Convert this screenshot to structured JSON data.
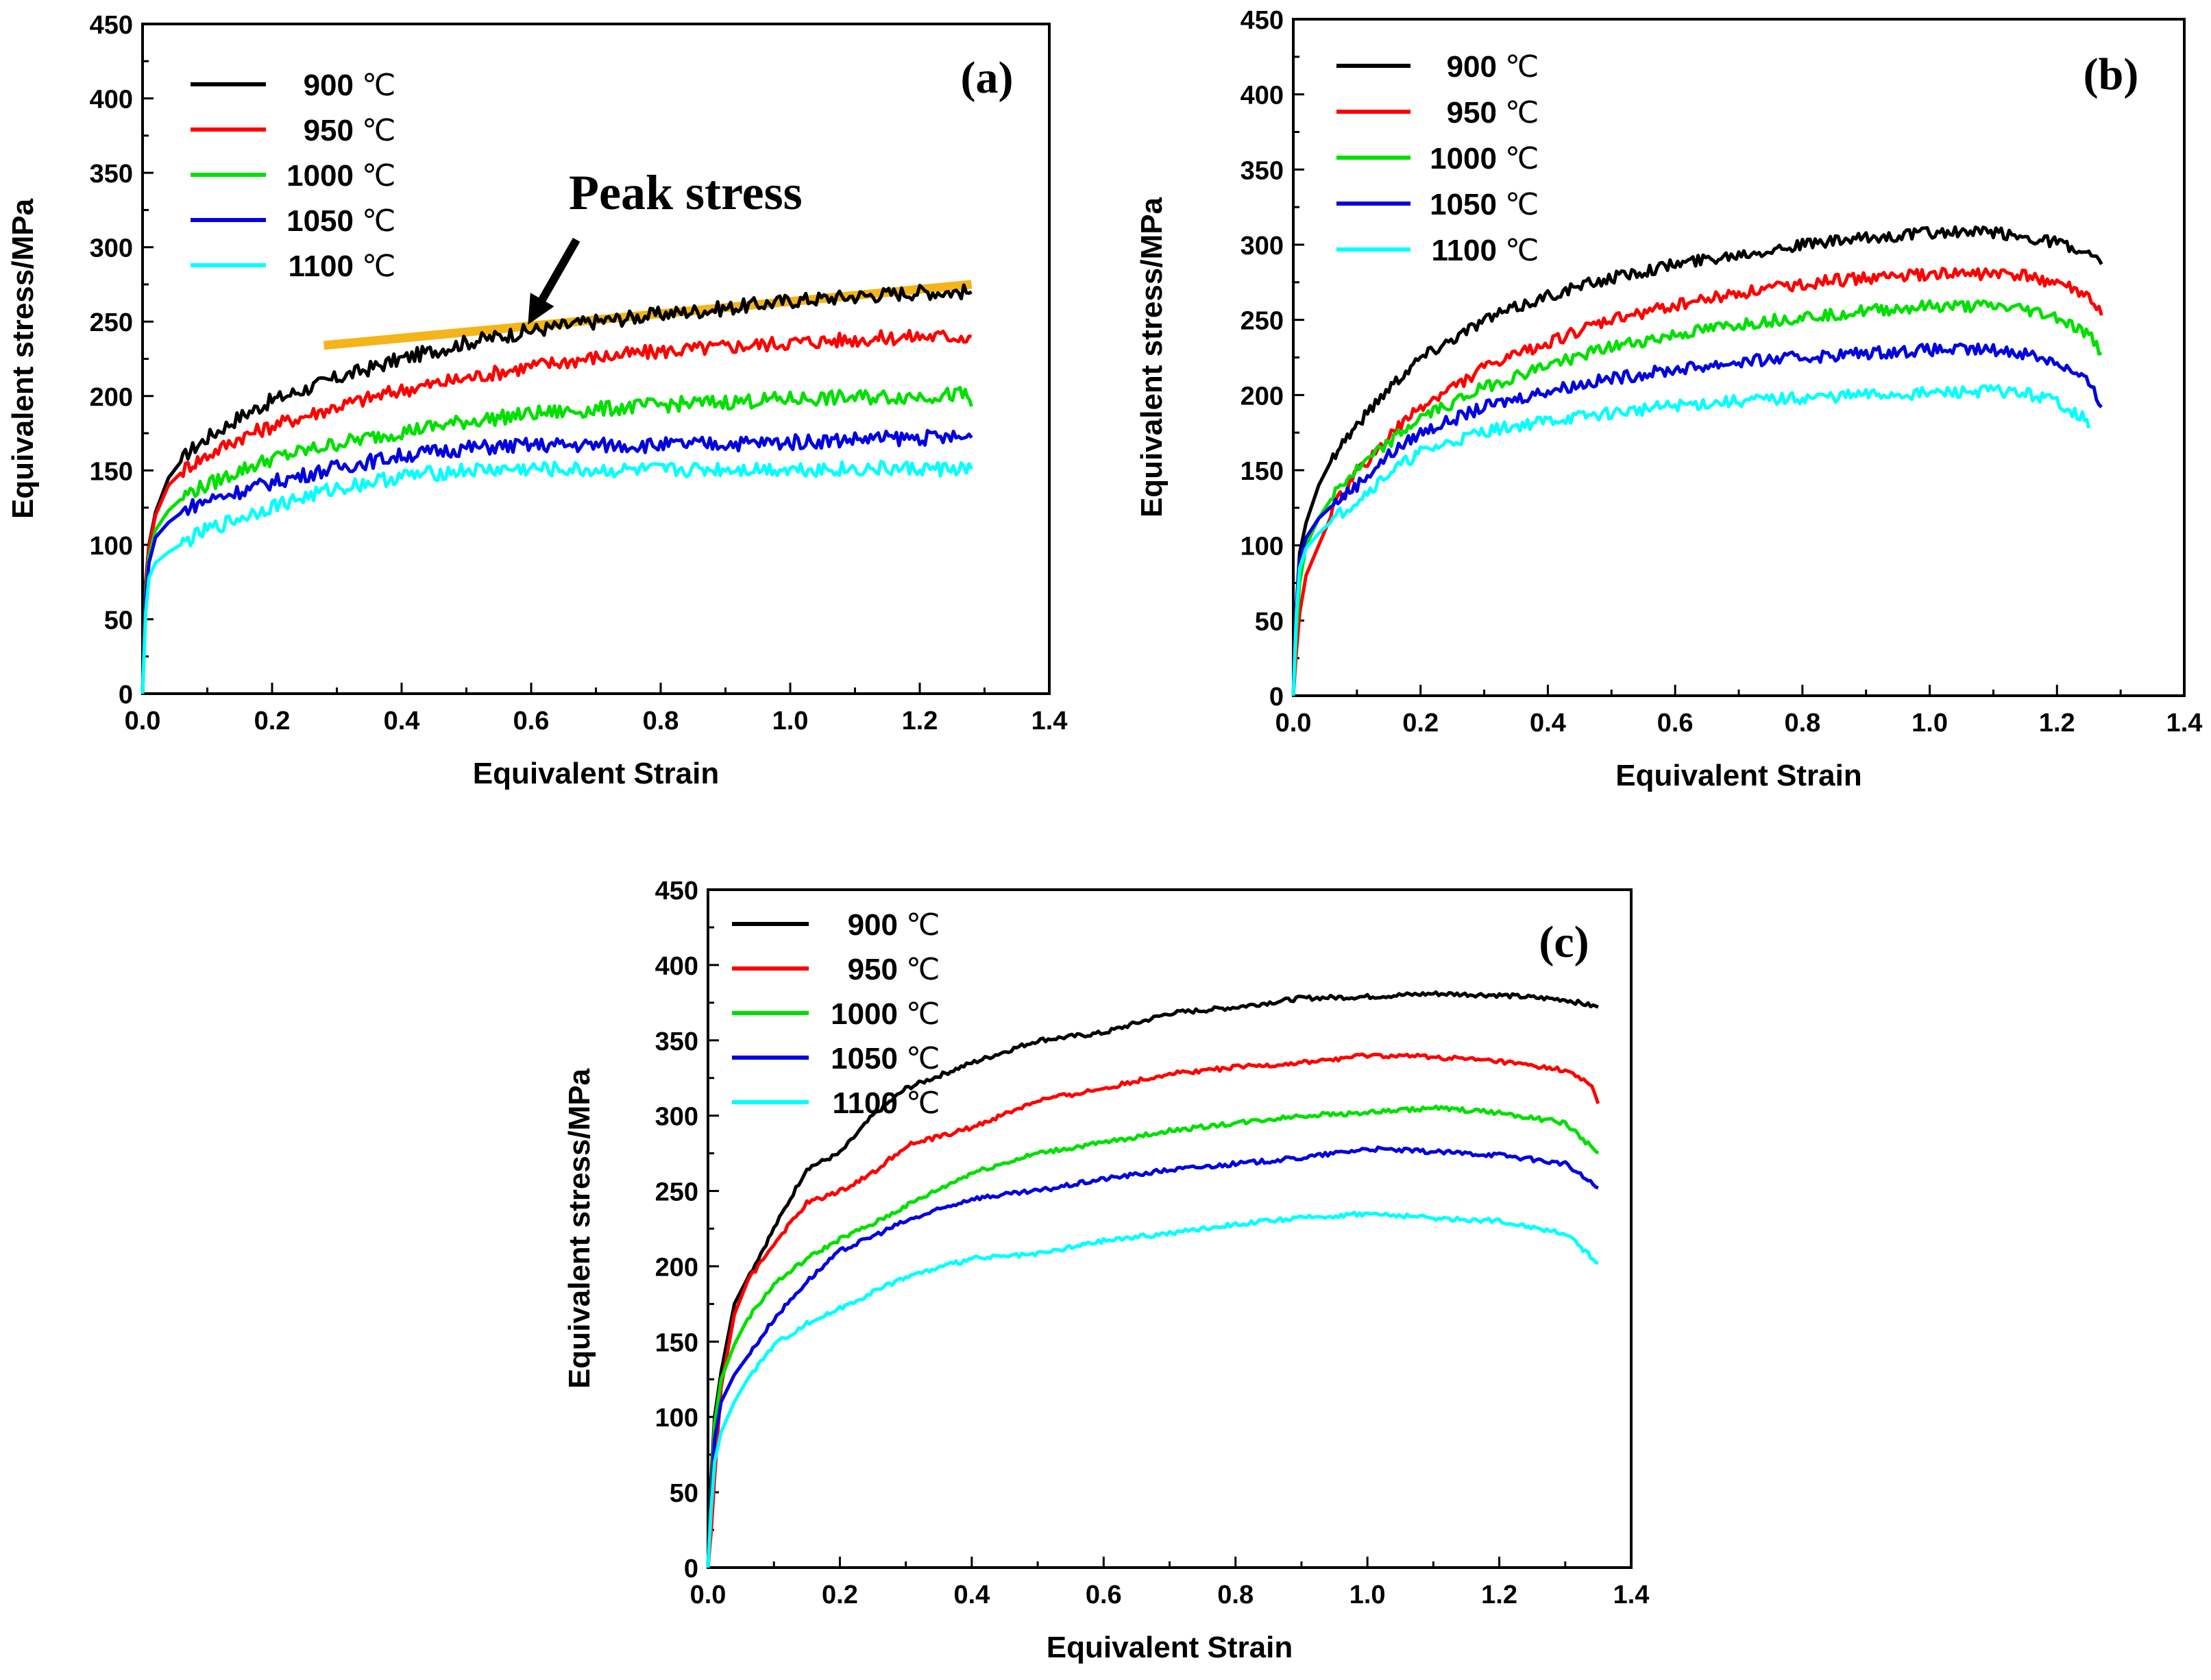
{
  "figure": {
    "unit_suffix": "℃"
  },
  "chart_data": [
    {
      "type": "line",
      "panel": "(a)",
      "xlabel": "Equivalent Strain",
      "ylabel": "Equivalent stress/MPa",
      "xlim": [
        0,
        1.4
      ],
      "ylim": [
        0,
        450
      ],
      "xticks": [
        "0.0",
        "0.2",
        "0.4",
        "0.6",
        "0.8",
        "1.0",
        "1.2",
        "1.4"
      ],
      "yticks": [
        "0",
        "50",
        "100",
        "150",
        "200",
        "250",
        "300",
        "350",
        "400",
        "450"
      ],
      "legend_position": "top-left",
      "annotation": {
        "text": "Peak stress",
        "arrow_from": [
          0.67,
          305
        ],
        "arrow_to": [
          0.595,
          248
        ],
        "trend_line": {
          "x": [
            0.28,
            1.28
          ],
          "y": [
            234,
            275
          ],
          "color": "#f4b41a"
        }
      },
      "series": [
        {
          "name": "900",
          "color": "#000000",
          "x": [
            0,
            0.005,
            0.01,
            0.02,
            0.04,
            0.07,
            0.1,
            0.15,
            0.2,
            0.3,
            0.4,
            0.5,
            0.6,
            0.7,
            0.8,
            0.9,
            1.0,
            1.1,
            1.2,
            1.28
          ],
          "y": [
            0,
            75,
            100,
            122,
            145,
            162,
            172,
            186,
            197,
            212,
            225,
            236,
            244,
            250,
            255,
            259,
            264,
            267,
            270,
            270
          ]
        },
        {
          "name": "950",
          "color": "#ff0000",
          "x": [
            0,
            0.005,
            0.01,
            0.02,
            0.04,
            0.07,
            0.1,
            0.15,
            0.2,
            0.3,
            0.4,
            0.5,
            0.6,
            0.7,
            0.8,
            0.9,
            1.0,
            1.1,
            1.2,
            1.28
          ],
          "y": [
            0,
            72,
            98,
            120,
            140,
            153,
            160,
            172,
            180,
            193,
            204,
            212,
            220,
            226,
            230,
            233,
            236,
            238,
            240,
            240
          ]
        },
        {
          "name": "1000",
          "color": "#00e000",
          "x": [
            0,
            0.005,
            0.01,
            0.02,
            0.04,
            0.07,
            0.1,
            0.15,
            0.2,
            0.3,
            0.4,
            0.5,
            0.6,
            0.7,
            0.8,
            0.9,
            1.0,
            1.1,
            1.2,
            1.27,
            1.28
          ],
          "y": [
            0,
            68,
            92,
            110,
            123,
            135,
            140,
            150,
            158,
            168,
            176,
            183,
            188,
            191,
            194,
            196,
            198,
            199,
            200,
            201,
            193
          ]
        },
        {
          "name": "1050",
          "color": "#0000e0",
          "x": [
            0,
            0.005,
            0.01,
            0.02,
            0.04,
            0.07,
            0.1,
            0.15,
            0.2,
            0.3,
            0.4,
            0.5,
            0.6,
            0.7,
            0.8,
            0.9,
            1.0,
            1.1,
            1.2,
            1.28
          ],
          "y": [
            0,
            64,
            88,
            105,
            115,
            125,
            130,
            136,
            142,
            152,
            160,
            165,
            167,
            167,
            167,
            168,
            169,
            171,
            172,
            172
          ]
        },
        {
          "name": "1100",
          "color": "#00ffff",
          "x": [
            0,
            0.005,
            0.01,
            0.02,
            0.04,
            0.07,
            0.1,
            0.15,
            0.2,
            0.3,
            0.4,
            0.5,
            0.6,
            0.7,
            0.8,
            0.9,
            1.0,
            1.1,
            1.2,
            1.28
          ],
          "y": [
            0,
            55,
            78,
            88,
            95,
            103,
            110,
            118,
            126,
            138,
            146,
            150,
            151,
            150,
            150,
            151,
            151,
            151,
            151,
            151
          ]
        }
      ]
    },
    {
      "type": "line",
      "panel": "(b)",
      "xlabel": "Equivalent Strain",
      "ylabel": "Equivalent stress/MPa",
      "xlim": [
        0,
        1.4
      ],
      "ylim": [
        0,
        450
      ],
      "xticks": [
        "0.0",
        "0.2",
        "0.4",
        "0.6",
        "0.8",
        "1.0",
        "1.2",
        "1.4"
      ],
      "yticks": [
        "0",
        "50",
        "100",
        "150",
        "200",
        "250",
        "300",
        "350",
        "400",
        "450"
      ],
      "legend_position": "top-left",
      "series": [
        {
          "name": "900",
          "color": "#000000",
          "x": [
            0,
            0.005,
            0.01,
            0.02,
            0.04,
            0.07,
            0.1,
            0.15,
            0.2,
            0.3,
            0.4,
            0.5,
            0.6,
            0.7,
            0.8,
            0.9,
            1.0,
            1.1,
            1.15,
            1.2,
            1.25,
            1.27
          ],
          "y": [
            0,
            60,
            95,
            115,
            140,
            165,
            180,
            205,
            225,
            250,
            266,
            278,
            287,
            294,
            300,
            304,
            308,
            308,
            305,
            302,
            292,
            287
          ]
        },
        {
          "name": "950",
          "color": "#ff0000",
          "x": [
            0,
            0.005,
            0.01,
            0.02,
            0.04,
            0.07,
            0.1,
            0.15,
            0.2,
            0.3,
            0.4,
            0.5,
            0.6,
            0.7,
            0.8,
            0.9,
            1.0,
            1.1,
            1.15,
            1.2,
            1.25,
            1.27
          ],
          "y": [
            0,
            30,
            55,
            80,
            100,
            130,
            148,
            172,
            192,
            218,
            235,
            250,
            260,
            268,
            274,
            278,
            280,
            281,
            279,
            275,
            265,
            253
          ]
        },
        {
          "name": "1000",
          "color": "#00e000",
          "x": [
            0,
            0.005,
            0.01,
            0.02,
            0.04,
            0.07,
            0.1,
            0.15,
            0.2,
            0.3,
            0.4,
            0.5,
            0.6,
            0.7,
            0.8,
            0.9,
            1.0,
            1.1,
            1.15,
            1.2,
            1.25,
            1.27
          ],
          "y": [
            0,
            45,
            75,
            100,
            118,
            138,
            150,
            168,
            185,
            205,
            220,
            232,
            240,
            247,
            252,
            256,
            259,
            259,
            257,
            252,
            240,
            228
          ]
        },
        {
          "name": "1050",
          "color": "#0000e0",
          "x": [
            0,
            0.005,
            0.01,
            0.02,
            0.04,
            0.07,
            0.1,
            0.15,
            0.2,
            0.3,
            0.4,
            0.5,
            0.6,
            0.7,
            0.8,
            0.9,
            1.0,
            1.1,
            1.15,
            1.2,
            1.25,
            1.27
          ],
          "y": [
            0,
            60,
            90,
            105,
            118,
            130,
            140,
            160,
            175,
            192,
            203,
            211,
            217,
            222,
            225,
            228,
            230,
            230,
            228,
            222,
            208,
            192
          ]
        },
        {
          "name": "1100",
          "color": "#00ffff",
          "x": [
            0,
            0.005,
            0.01,
            0.02,
            0.04,
            0.07,
            0.1,
            0.15,
            0.2,
            0.3,
            0.4,
            0.5,
            0.6,
            0.7,
            0.8,
            0.9,
            1.0,
            1.1,
            1.15,
            1.2,
            1.24,
            1.25
          ],
          "y": [
            0,
            55,
            85,
            98,
            108,
            120,
            130,
            148,
            162,
            176,
            183,
            188,
            193,
            196,
            198,
            200,
            201,
            203,
            201,
            196,
            185,
            178
          ]
        }
      ]
    },
    {
      "type": "line",
      "panel": "(c)",
      "xlabel": "Equivalent Strain",
      "ylabel": "Equivalent stress/MPa",
      "xlim": [
        0,
        1.4
      ],
      "ylim": [
        0,
        450
      ],
      "xticks": [
        "0.0",
        "0.2",
        "0.4",
        "0.6",
        "0.8",
        "1.0",
        "1.2",
        "1.4"
      ],
      "yticks": [
        "0",
        "50",
        "100",
        "150",
        "200",
        "250",
        "300",
        "350",
        "400",
        "450"
      ],
      "legend_position": "top-left",
      "series": [
        {
          "name": "900",
          "color": "#000000",
          "x": [
            0,
            0.005,
            0.01,
            0.02,
            0.04,
            0.06,
            0.1,
            0.15,
            0.2,
            0.25,
            0.3,
            0.4,
            0.5,
            0.6,
            0.7,
            0.8,
            0.9,
            1.0,
            1.1,
            1.2,
            1.3,
            1.35
          ],
          "y": [
            0,
            60,
            100,
            130,
            175,
            192,
            225,
            265,
            275,
            300,
            318,
            335,
            350,
            355,
            368,
            372,
            378,
            379,
            381,
            380,
            377,
            372
          ]
        },
        {
          "name": "950",
          "color": "#ff0000",
          "x": [
            0,
            0.005,
            0.01,
            0.02,
            0.04,
            0.06,
            0.1,
            0.15,
            0.2,
            0.25,
            0.3,
            0.4,
            0.5,
            0.6,
            0.7,
            0.8,
            0.9,
            1.0,
            1.1,
            1.2,
            1.3,
            1.34,
            1.35
          ],
          "y": [
            0,
            25,
            60,
            120,
            168,
            190,
            215,
            242,
            250,
            262,
            280,
            292,
            310,
            318,
            328,
            332,
            335,
            340,
            339,
            336,
            330,
            320,
            308
          ]
        },
        {
          "name": "1000",
          "color": "#00e000",
          "x": [
            0,
            0.005,
            0.01,
            0.02,
            0.04,
            0.06,
            0.1,
            0.15,
            0.2,
            0.25,
            0.3,
            0.4,
            0.5,
            0.6,
            0.7,
            0.8,
            0.9,
            1.0,
            1.1,
            1.2,
            1.3,
            1.35
          ],
          "y": [
            0,
            50,
            95,
            125,
            148,
            165,
            188,
            205,
            218,
            228,
            240,
            262,
            275,
            282,
            290,
            295,
            300,
            302,
            305,
            302,
            295,
            275
          ]
        },
        {
          "name": "1050",
          "color": "#0000e0",
          "x": [
            0,
            0.005,
            0.01,
            0.02,
            0.04,
            0.06,
            0.1,
            0.15,
            0.2,
            0.25,
            0.3,
            0.4,
            0.5,
            0.6,
            0.7,
            0.8,
            0.9,
            1.0,
            1.1,
            1.2,
            1.3,
            1.35
          ],
          "y": [
            0,
            45,
            85,
            110,
            128,
            140,
            165,
            190,
            210,
            220,
            230,
            245,
            250,
            258,
            264,
            268,
            272,
            278,
            276,
            274,
            268,
            252
          ]
        },
        {
          "name": "1100",
          "color": "#00ffff",
          "x": [
            0,
            0.005,
            0.01,
            0.02,
            0.04,
            0.06,
            0.1,
            0.15,
            0.2,
            0.25,
            0.3,
            0.4,
            0.5,
            0.6,
            0.7,
            0.8,
            0.9,
            1.0,
            1.1,
            1.2,
            1.3,
            1.35
          ],
          "y": [
            0,
            40,
            70,
            90,
            110,
            125,
            148,
            162,
            172,
            183,
            193,
            205,
            208,
            217,
            222,
            228,
            232,
            235,
            232,
            230,
            222,
            202
          ]
        }
      ]
    }
  ]
}
